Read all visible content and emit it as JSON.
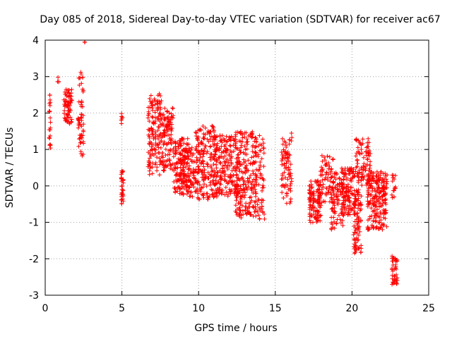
{
  "chart_data": {
    "type": "scatter",
    "title": "Day 085 of 2018, Sidereal Day-to-day VTEC variation (SDTVAR) for receiver ac67",
    "xlabel": "GPS time / hours",
    "ylabel": "SDTVAR / TECUs",
    "xlim": [
      0,
      25
    ],
    "ylim": [
      -3,
      4
    ],
    "xticks": [
      0,
      5,
      10,
      15,
      20,
      25
    ],
    "yticks": [
      -3,
      -2,
      -1,
      0,
      1,
      2,
      3,
      4
    ],
    "grid": true,
    "legend": "none",
    "marker": "+",
    "series": [
      {
        "name": "SDTVAR",
        "color": "#ff0000",
        "clusters": [
          {
            "x": [
              0.25,
              0.35
            ],
            "y": [
              1.0,
              2.5
            ],
            "n": 22
          },
          {
            "x": [
              0.8,
              0.9
            ],
            "y": [
              2.8,
              3.15
            ],
            "n": 4
          },
          {
            "x": [
              1.2,
              1.75
            ],
            "y": [
              1.7,
              2.65
            ],
            "n": 70
          },
          {
            "x": [
              2.15,
              2.5
            ],
            "y": [
              0.8,
              3.25
            ],
            "n": 55
          },
          {
            "x": [
              2.55,
              2.6
            ],
            "y": [
              3.9,
              4.0
            ],
            "n": 2
          },
          {
            "x": [
              4.95,
              5.1
            ],
            "y": [
              -0.55,
              0.5
            ],
            "n": 30
          },
          {
            "x": [
              4.95,
              5.05
            ],
            "y": [
              1.7,
              2.0
            ],
            "n": 6
          },
          {
            "x": [
              6.7,
              7.6
            ],
            "y": [
              0.3,
              2.55
            ],
            "n": 140
          },
          {
            "x": [
              7.6,
              8.4
            ],
            "y": [
              0.4,
              2.15
            ],
            "n": 110
          },
          {
            "x": [
              8.3,
              9.4
            ],
            "y": [
              -0.2,
              1.3
            ],
            "n": 120
          },
          {
            "x": [
              8.7,
              10.0
            ],
            "y": [
              -0.3,
              1.1
            ],
            "n": 120
          },
          {
            "x": [
              9.8,
              11.2
            ],
            "y": [
              -0.4,
              1.65
            ],
            "n": 180
          },
          {
            "x": [
              11.0,
              12.6
            ],
            "y": [
              -0.3,
              1.4
            ],
            "n": 200
          },
          {
            "x": [
              12.4,
              13.8
            ],
            "y": [
              -0.9,
              1.5
            ],
            "n": 230
          },
          {
            "x": [
              13.7,
              14.3
            ],
            "y": [
              -0.95,
              1.4
            ],
            "n": 60
          },
          {
            "x": [
              15.4,
              16.1
            ],
            "y": [
              -0.5,
              1.45
            ],
            "n": 80
          },
          {
            "x": [
              17.2,
              18.0
            ],
            "y": [
              -1.0,
              0.15
            ],
            "n": 110
          },
          {
            "x": [
              17.9,
              18.8
            ],
            "y": [
              -0.5,
              0.85
            ],
            "n": 70
          },
          {
            "x": [
              18.6,
              19.5
            ],
            "y": [
              -1.2,
              0.4
            ],
            "n": 90
          },
          {
            "x": [
              19.3,
              20.2
            ],
            "y": [
              -0.8,
              0.5
            ],
            "n": 130
          },
          {
            "x": [
              20.1,
              20.6
            ],
            "y": [
              -1.85,
              -0.1
            ],
            "n": 80
          },
          {
            "x": [
              20.2,
              21.2
            ],
            "y": [
              0.0,
              1.3
            ],
            "n": 90
          },
          {
            "x": [
              21.0,
              22.3
            ],
            "y": [
              -1.2,
              0.4
            ],
            "n": 220
          },
          {
            "x": [
              22.6,
              22.95
            ],
            "y": [
              -2.75,
              -1.9
            ],
            "n": 40
          },
          {
            "x": [
              22.6,
              22.85
            ],
            "y": [
              -0.4,
              0.35
            ],
            "n": 14
          }
        ]
      }
    ]
  }
}
